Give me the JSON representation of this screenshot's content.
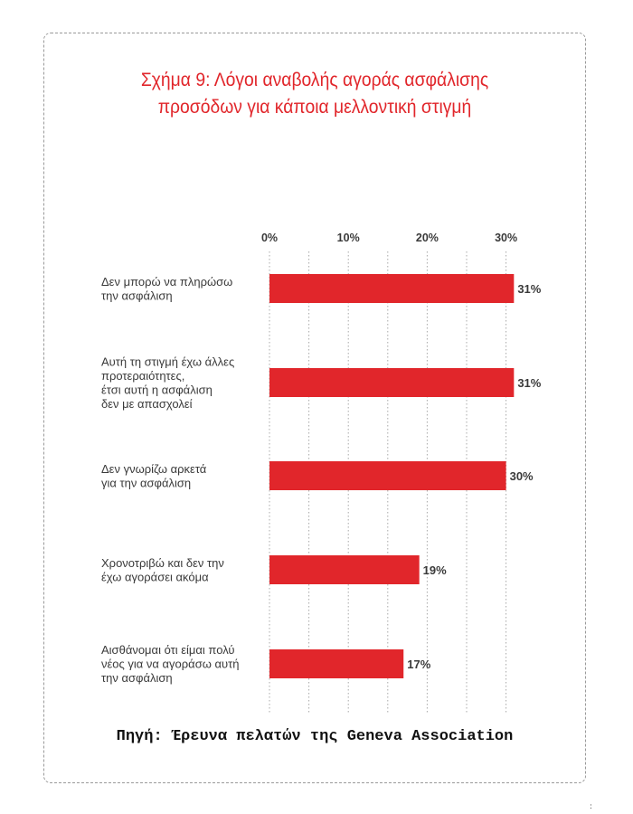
{
  "chart_data": {
    "type": "bar",
    "orientation": "horizontal",
    "title_lines": [
      "Σχήμα 9: Λόγοι αναβολής αγοράς ασφάλισης",
      "προσόδων για κάποια μελλοντική στιγμή"
    ],
    "categories": [
      [
        "Δεν μπορώ να πληρώσω",
        "την ασφάλιση"
      ],
      [
        "Αυτή τη στιγμή έχω άλλες",
        "προτεραιότητες,",
        "έτσι αυτή η ασφάλιση",
        "δεν με απασχολεί"
      ],
      [
        "Δεν γνωρίζω αρκετά",
        "για την ασφάλιση"
      ],
      [
        "Χρονοτριβώ και δεν την",
        "έχω αγοράσει ακόμα"
      ],
      [
        "Αισθάνομαι ότι είμαι πολύ",
        "νέος για να αγοράσω αυτή",
        "την ασφάλιση"
      ]
    ],
    "values": [
      31,
      31,
      30,
      19,
      17
    ],
    "value_labels": [
      "31%",
      "31%",
      "30%",
      "19%",
      "17%"
    ],
    "xlim": [
      0,
      30
    ],
    "xticks": [
      0,
      10,
      20,
      30
    ],
    "xtick_labels": [
      "0%",
      "10%",
      "20%",
      "30%"
    ],
    "x_axis_position": "top",
    "grid": true,
    "bar_color": "#e1262b"
  },
  "source": "Πηγή: Έρευνα πελατών της Geneva Association",
  "corner_mark": ":"
}
